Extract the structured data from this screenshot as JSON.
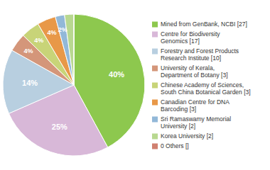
{
  "chart_data": {
    "type": "pie",
    "categories": [
      "Mined from GenBank, NCBI [27]",
      "Centre for Biodiversity\nGenomics [17]",
      "Forestry and Forest Products\nResearch Institute [10]",
      "University of Kerala,\nDepartment of Botany [3]",
      "Chinese Academy of Sciences,\nSouth China Botanical Garden [3]",
      "Canadian Centre for DNA\nBarcoding [3]",
      "Sri Ramaswamy Memorial\nUniversity [2]",
      "Korea University [2]",
      "0 Others []"
    ],
    "values": [
      40,
      25,
      14,
      4,
      4,
      4,
      2,
      2,
      0.01
    ],
    "value_labels": [
      "40%",
      "25%",
      "14%",
      "4%",
      "4%",
      "4%",
      "2%",
      null,
      null
    ],
    "colors": [
      "#8dc84e",
      "#d8b8d8",
      "#b8cfe0",
      "#d4967a",
      "#c8d478",
      "#e89848",
      "#92b8d8",
      "#b8d890",
      "#d08070"
    ],
    "data_labels": true,
    "legend": "right"
  }
}
